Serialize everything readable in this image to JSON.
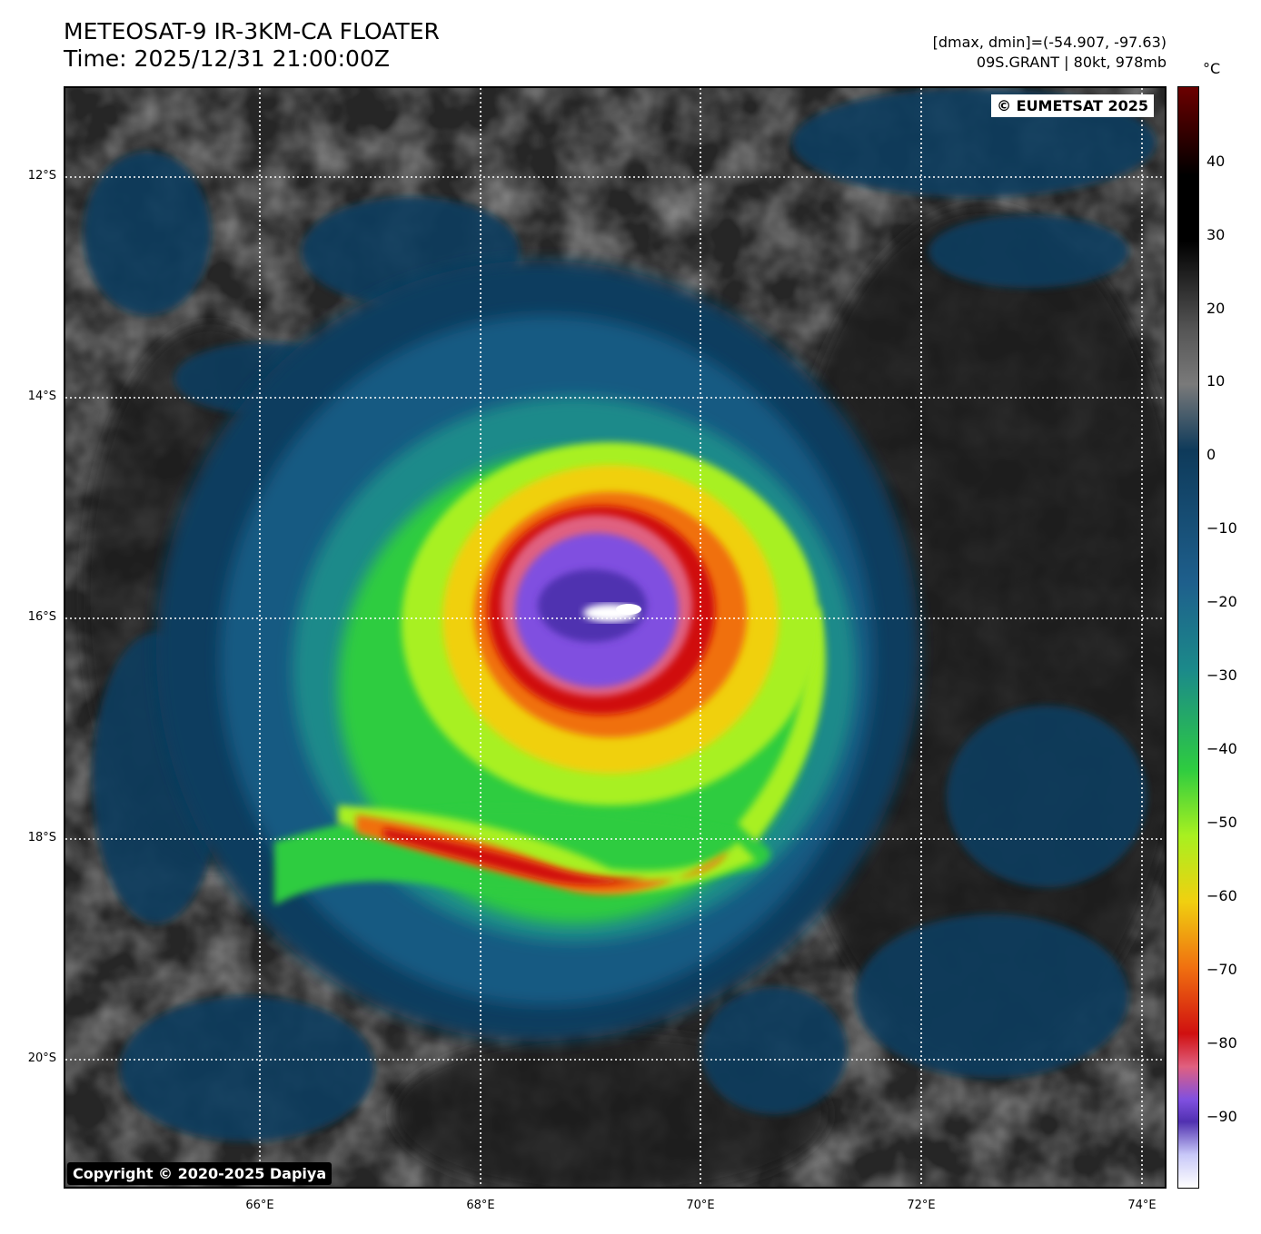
{
  "header": {
    "title_line1": "METEOSAT-9 IR-3KM-CA FLOATER",
    "title_line2": "Time: 2025/12/31 21:00:00Z",
    "range_text": "[dmax, dmin]=(-54.907, -97.63)",
    "storm_text": "09S.GRANT | 80kt, 978mb"
  },
  "map": {
    "watermark": "© EUMETSAT 2025",
    "copyright": "Copyright © 2020-2025 Dapiya",
    "lat_labels": [
      "12°S",
      "14°S",
      "16°S",
      "18°S",
      "20°S"
    ],
    "lon_labels": [
      "66°E",
      "68°E",
      "70°E",
      "72°E",
      "74°E"
    ],
    "features": {
      "center_label": "cyclone eye region",
      "center_lat": "16°S",
      "center_lon": "69.2°E"
    }
  },
  "colorbar": {
    "unit": "°C",
    "ticks": [
      "40",
      "30",
      "20",
      "10",
      "0",
      "−10",
      "−20",
      "−30",
      "−40",
      "−50",
      "−60",
      "−70",
      "−80",
      "−90"
    ],
    "colors": {
      "warm_top": "#6b0000",
      "black": "#000000",
      "gray": "#7a7a7a",
      "navy": "#0e3a5a",
      "blue": "#1e5f8c",
      "teal": "#1b8a8a",
      "green": "#2ecc40",
      "lime": "#a8f020",
      "yellow": "#f0d010",
      "orange": "#f07010",
      "red": "#d01010",
      "pink": "#e06080",
      "purple": "#8050e0",
      "violet": "#5030b0",
      "white": "#ffffff"
    }
  }
}
